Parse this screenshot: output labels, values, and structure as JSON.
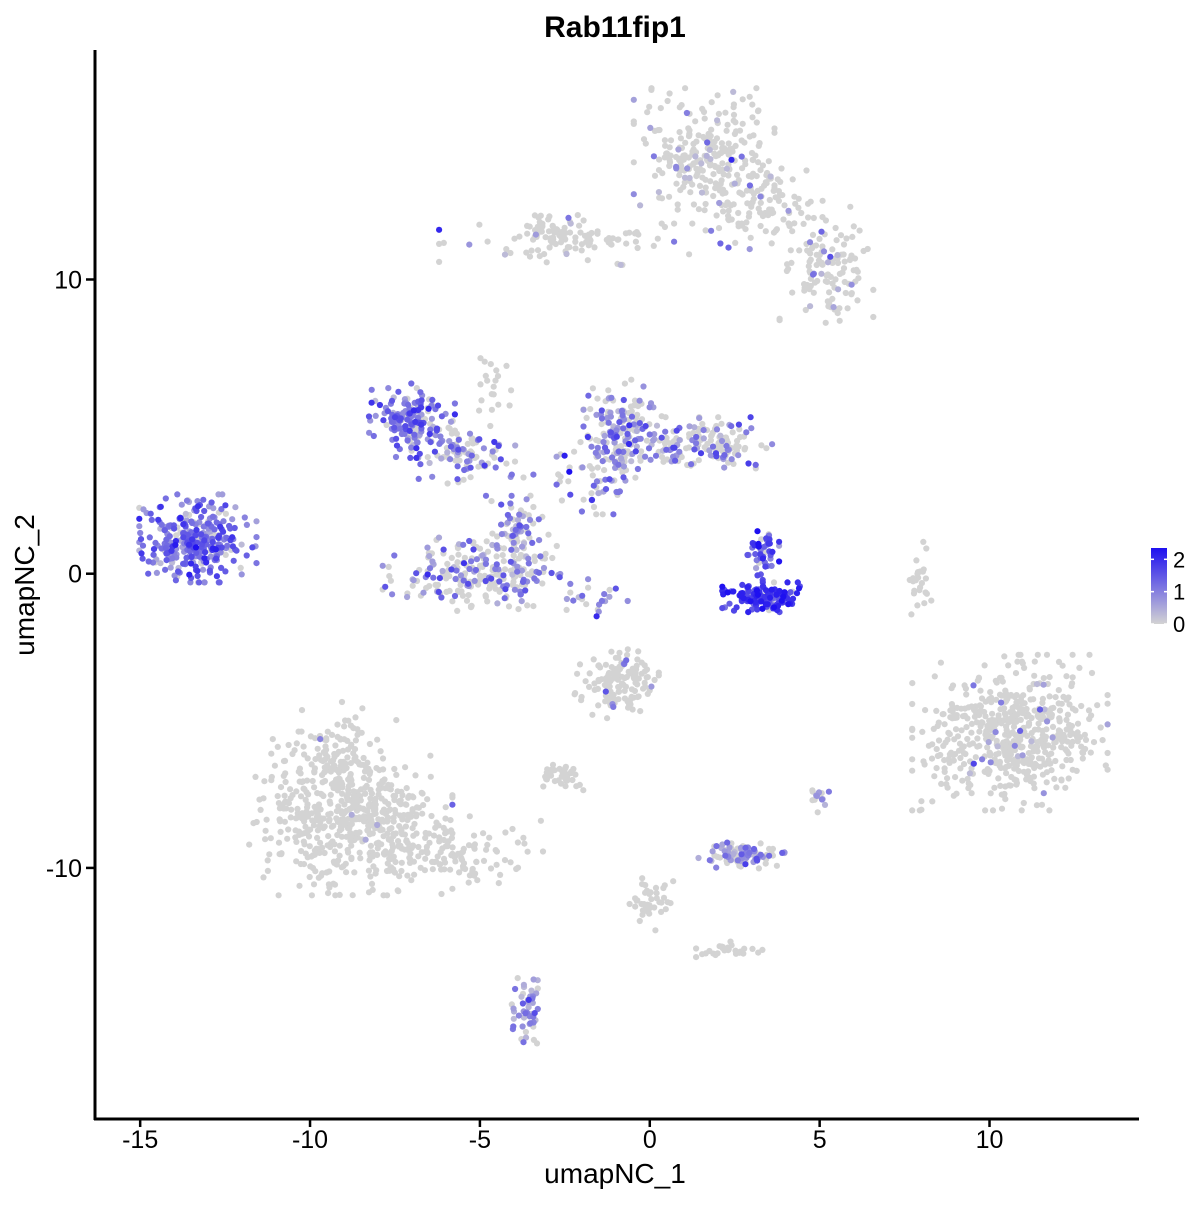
{
  "chart_data": {
    "type": "scatter",
    "title": "Rab11fip1",
    "xlabel": "umapNC_1",
    "ylabel": "umapNC_2",
    "xlim": [
      -16.3,
      14.4
    ],
    "ylim": [
      -18.5,
      17.8
    ],
    "xticks": [
      -15,
      -10,
      -5,
      0,
      5,
      10
    ],
    "xtick_labels": [
      "-15",
      "-10",
      "-5",
      "0",
      "5",
      "10"
    ],
    "yticks": [
      -10,
      0,
      10
    ],
    "ytick_labels": [
      "-10",
      "0",
      "10"
    ],
    "grid": false,
    "legend_position": "right",
    "color_scale": {
      "low_color": "#d3d3d3",
      "high_color": "#1e10f0",
      "min": 0,
      "max": 2.35,
      "ticks": [
        0,
        1,
        2
      ],
      "tick_labels": [
        "0",
        "1",
        "2"
      ]
    },
    "clusters": [
      {
        "cx": 1.6,
        "cy": 14.2,
        "sx": 0.9,
        "sy": 1.0,
        "n": 260,
        "expr_frac": 0.08,
        "expr_mean": 0.7
      },
      {
        "cx": 3.4,
        "cy": 12.6,
        "sx": 0.8,
        "sy": 0.7,
        "n": 90,
        "expr_frac": 0.1,
        "expr_mean": 0.8
      },
      {
        "cx": 5.2,
        "cy": 10.4,
        "sx": 0.6,
        "sy": 0.9,
        "n": 120,
        "expr_frac": 0.12,
        "expr_mean": 0.8
      },
      {
        "cx": -1.6,
        "cy": 11.3,
        "sx": 2.0,
        "sy": 0.35,
        "n": 80,
        "expr_frac": 0.12,
        "expr_mean": 0.8
      },
      {
        "cx": -3.0,
        "cy": 11.5,
        "sx": 0.4,
        "sy": 0.3,
        "n": 50,
        "expr_frac": 0.08,
        "expr_mean": 0.7
      },
      {
        "cx": -13.3,
        "cy": 1.2,
        "sx": 0.75,
        "sy": 0.65,
        "n": 330,
        "expr_frac": 0.82,
        "expr_mean": 1.2
      },
      {
        "cx": -7.0,
        "cy": 5.2,
        "sx": 0.55,
        "sy": 0.55,
        "n": 170,
        "expr_frac": 0.82,
        "expr_mean": 1.2
      },
      {
        "cx": -5.4,
        "cy": 4.1,
        "sx": 0.7,
        "sy": 0.45,
        "n": 90,
        "expr_frac": 0.55,
        "expr_mean": 1.0
      },
      {
        "cx": -5.1,
        "cy": 0.0,
        "sx": 1.2,
        "sy": 0.55,
        "n": 230,
        "expr_frac": 0.35,
        "expr_mean": 1.0
      },
      {
        "cx": -3.9,
        "cy": 1.3,
        "sx": 0.4,
        "sy": 0.9,
        "n": 90,
        "expr_frac": 0.55,
        "expr_mean": 1.0
      },
      {
        "cx": -0.8,
        "cy": 5.0,
        "sx": 0.5,
        "sy": 0.8,
        "n": 150,
        "expr_frac": 0.6,
        "expr_mean": 1.0
      },
      {
        "cx": 1.3,
        "cy": 4.4,
        "sx": 1.0,
        "sy": 0.4,
        "n": 160,
        "expr_frac": 0.45,
        "expr_mean": 1.0
      },
      {
        "cx": -1.5,
        "cy": 3.4,
        "sx": 0.6,
        "sy": 0.6,
        "n": 60,
        "expr_frac": 0.5,
        "expr_mean": 1.0
      },
      {
        "cx": 3.4,
        "cy": -0.8,
        "sx": 0.55,
        "sy": 0.22,
        "n": 150,
        "expr_frac": 0.92,
        "expr_mean": 1.7
      },
      {
        "cx": 3.3,
        "cy": 0.7,
        "sx": 0.22,
        "sy": 0.45,
        "n": 45,
        "expr_frac": 0.85,
        "expr_mean": 1.4
      },
      {
        "cx": -1.0,
        "cy": -3.6,
        "sx": 0.55,
        "sy": 0.6,
        "n": 130,
        "expr_frac": 0.06,
        "expr_mean": 0.8
      },
      {
        "cx": -8.8,
        "cy": -8.4,
        "sx": 1.3,
        "sy": 1.1,
        "n": 520,
        "expr_frac": 0.01,
        "expr_mean": 0.7
      },
      {
        "cx": -9.3,
        "cy": -6.2,
        "sx": 0.8,
        "sy": 0.8,
        "n": 120,
        "expr_frac": 0.01,
        "expr_mean": 0.7
      },
      {
        "cx": -5.9,
        "cy": -9.5,
        "sx": 1.3,
        "sy": 0.55,
        "n": 110,
        "expr_frac": 0.01,
        "expr_mean": 0.7
      },
      {
        "cx": 10.6,
        "cy": -5.4,
        "sx": 1.25,
        "sy": 1.15,
        "n": 560,
        "expr_frac": 0.03,
        "expr_mean": 0.7
      },
      {
        "cx": 2.7,
        "cy": -9.6,
        "sx": 0.55,
        "sy": 0.2,
        "n": 110,
        "expr_frac": 0.5,
        "expr_mean": 0.8
      },
      {
        "cx": -2.6,
        "cy": -6.9,
        "sx": 0.3,
        "sy": 0.2,
        "n": 40,
        "expr_frac": 0.02,
        "expr_mean": 0.7
      },
      {
        "cx": -3.6,
        "cy": -14.7,
        "sx": 0.2,
        "sy": 0.55,
        "n": 50,
        "expr_frac": 0.75,
        "expr_mean": 0.8
      },
      {
        "cx": 0.0,
        "cy": -11.2,
        "sx": 0.3,
        "sy": 0.4,
        "n": 40,
        "expr_frac": 0.0,
        "expr_mean": 0.7
      },
      {
        "cx": 2.4,
        "cy": -12.8,
        "sx": 0.45,
        "sy": 0.18,
        "n": 30,
        "expr_frac": 0.0,
        "expr_mean": 0.7
      },
      {
        "cx": 5.0,
        "cy": -7.6,
        "sx": 0.15,
        "sy": 0.3,
        "n": 15,
        "expr_frac": 0.6,
        "expr_mean": 0.8
      },
      {
        "cx": 8.0,
        "cy": -0.3,
        "sx": 0.15,
        "sy": 0.6,
        "n": 25,
        "expr_frac": 0.0,
        "expr_mean": 0.7
      },
      {
        "cx": -4.6,
        "cy": 6.3,
        "sx": 0.25,
        "sy": 0.9,
        "n": 20,
        "expr_frac": 0.1,
        "expr_mean": 0.7
      },
      {
        "cx": -1.8,
        "cy": -0.9,
        "sx": 0.5,
        "sy": 0.4,
        "n": 20,
        "expr_frac": 0.8,
        "expr_mean": 1.0
      }
    ]
  }
}
